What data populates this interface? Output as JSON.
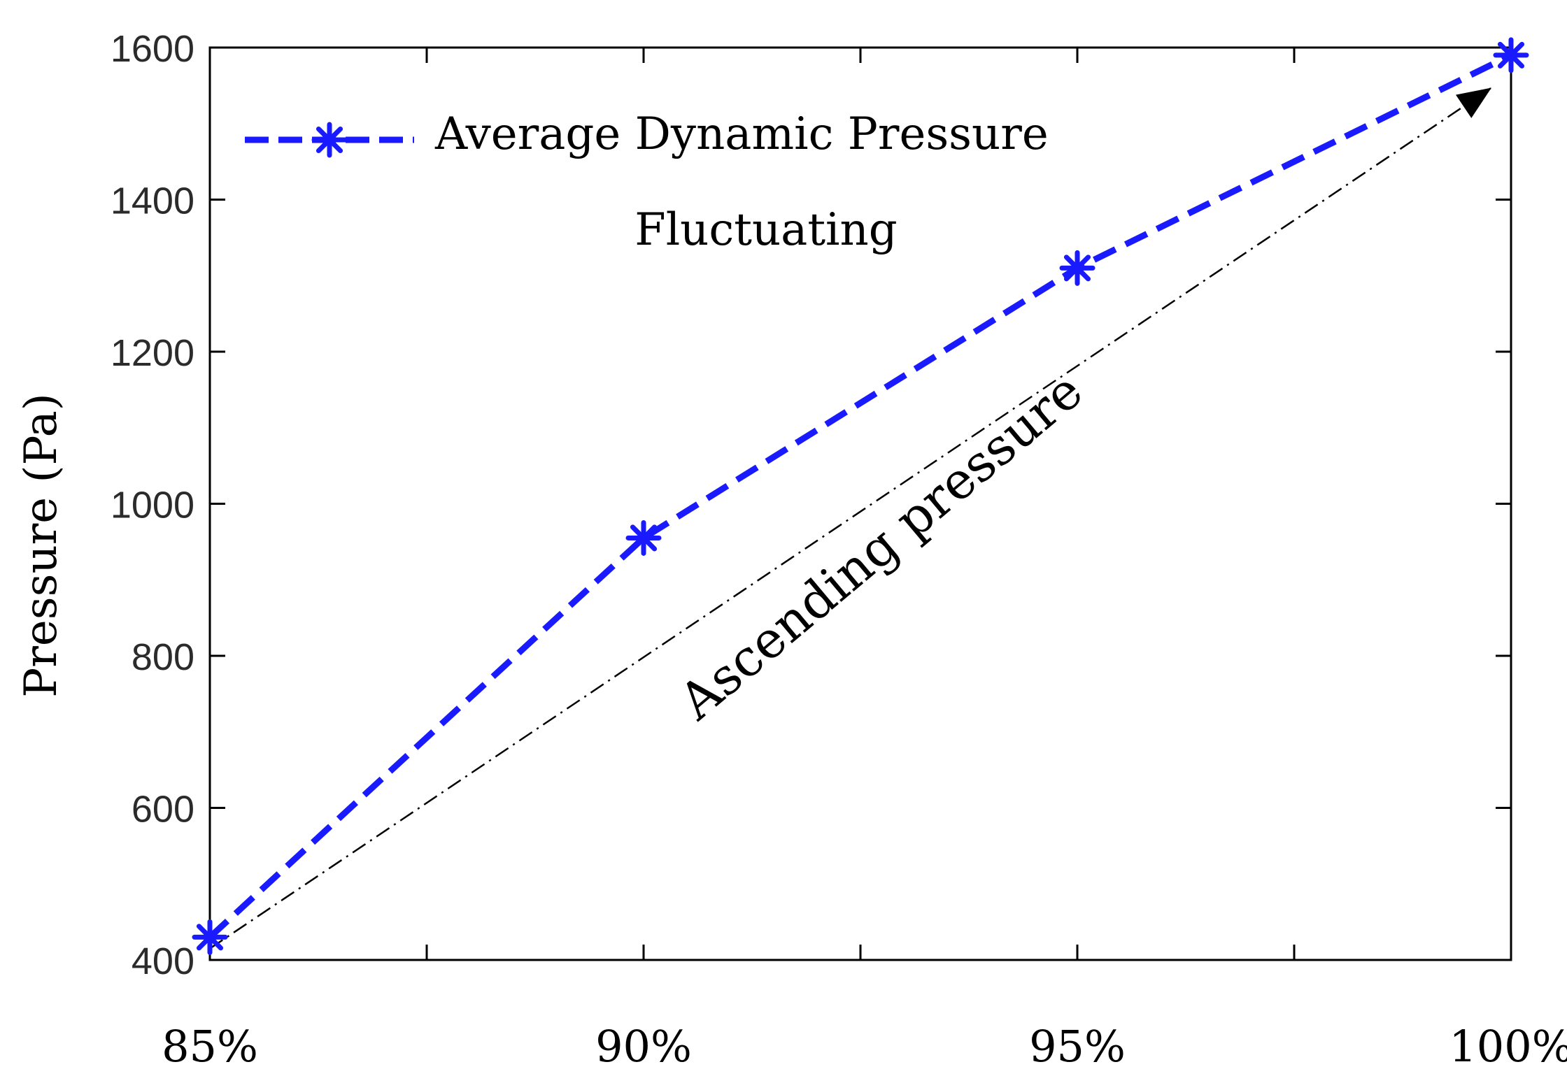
{
  "chart_data": {
    "type": "line",
    "title": "",
    "xlabel": "",
    "ylabel": "Pressure (Pa)",
    "categories": [
      "85%",
      "90%",
      "95%",
      "100%"
    ],
    "x": [
      85,
      90,
      95,
      100
    ],
    "xlim": [
      85,
      100
    ],
    "xticks_minor": [
      87.5,
      92.5,
      97.5
    ],
    "ylim": [
      400,
      1600
    ],
    "yticks": [
      400,
      600,
      800,
      1000,
      1200,
      1400,
      1600
    ],
    "ytick_labels": [
      "400",
      "600",
      "800",
      "1000",
      "1200",
      "1400",
      "1600"
    ],
    "grid": false,
    "series": [
      {
        "name": "Average Dynamic Pressure Fluctuating",
        "legend_line1": "Average Dynamic Pressure",
        "legend_line2": "Fluctuating",
        "values": [
          430,
          955,
          1310,
          1590
        ],
        "color": "#1a1aff",
        "style": "dashed",
        "marker": "star"
      }
    ],
    "annotations": [
      {
        "text": "Ascending pressure",
        "arrow_from": [
          85,
          415
        ],
        "arrow_to": [
          100,
          1560
        ],
        "color": "#000000",
        "style": "dash-dot"
      }
    ],
    "legend_position": "top-left"
  },
  "colors": {
    "series": "#1a1aff",
    "axis": "#000000",
    "tick_label": "#2b2b2b",
    "background": "#ffffff"
  }
}
